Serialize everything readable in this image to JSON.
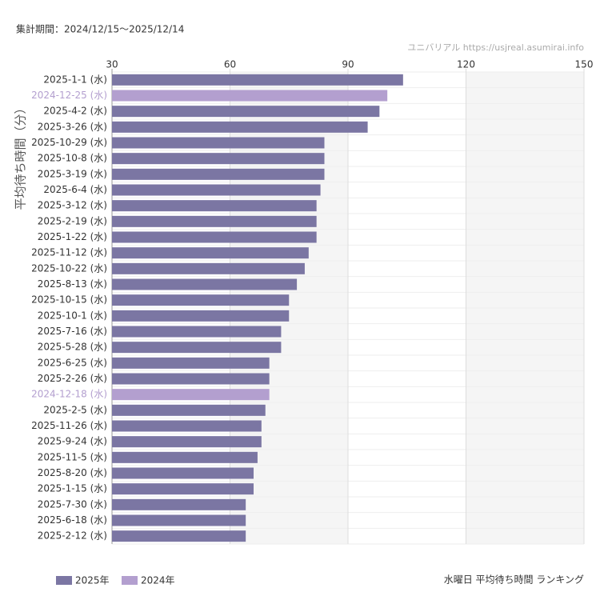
{
  "period": "集計期間：2024/12/15～2025/12/14",
  "source": "ユニバリアル  https://usjreal.asumirai.info",
  "caption": "水曜日 平均待ち時間 ランキング",
  "chart_data": {
    "type": "bar",
    "orientation": "horizontal",
    "y_label": "平均待ち時間（分）",
    "categories": [
      "2025-1-1 (水)",
      "2024-12-25 (水)",
      "2025-4-2 (水)",
      "2025-3-26 (水)",
      "2025-10-29 (水)",
      "2025-10-8 (水)",
      "2025-3-19 (水)",
      "2025-6-4 (水)",
      "2025-3-12 (水)",
      "2025-2-19 (水)",
      "2025-1-22 (水)",
      "2025-11-12 (水)",
      "2025-10-22 (水)",
      "2025-8-13 (水)",
      "2025-10-15 (水)",
      "2025-10-1 (水)",
      "2025-7-16 (水)",
      "2025-5-28 (水)",
      "2025-6-25 (水)",
      "2025-2-26 (水)",
      "2024-12-18 (水)",
      "2025-2-5 (水)",
      "2025-11-26 (水)",
      "2025-9-24 (水)",
      "2025-11-5 (水)",
      "2025-8-20 (水)",
      "2025-1-15 (水)",
      "2025-7-30 (水)",
      "2025-6-18 (水)",
      "2025-2-12 (水)"
    ],
    "series": [
      {
        "name": "2025年",
        "color": "#7b76a3",
        "values": [
          104,
          null,
          98,
          95,
          84,
          84,
          84,
          83,
          82,
          82,
          82,
          80,
          79,
          77,
          75,
          75,
          73,
          73,
          70,
          70,
          null,
          69,
          68,
          68,
          67,
          66,
          66,
          64,
          64,
          64
        ]
      },
      {
        "name": "2024年",
        "color": "#b39fcf",
        "values": [
          null,
          100,
          null,
          null,
          null,
          null,
          null,
          null,
          null,
          null,
          null,
          null,
          null,
          null,
          null,
          null,
          null,
          null,
          null,
          null,
          70,
          null,
          null,
          null,
          null,
          null,
          null,
          null,
          null,
          null
        ]
      }
    ],
    "xlim": [
      30,
      150
    ],
    "xticks": [
      30,
      60,
      90,
      120,
      150
    ],
    "grid": true
  }
}
